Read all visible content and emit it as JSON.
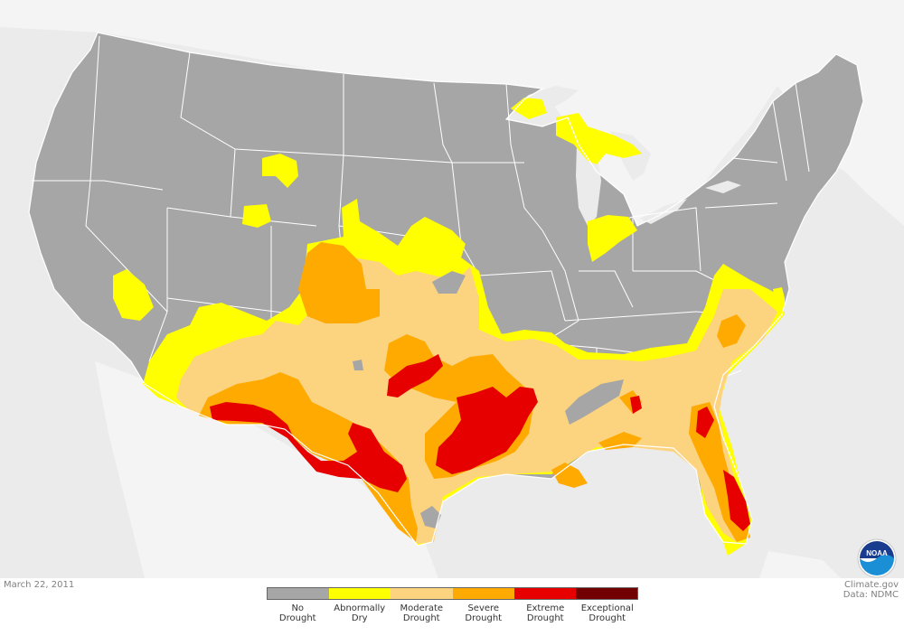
{
  "date": "March 22, 2011",
  "credits": {
    "site": "Climate.gov",
    "data": "Data: NDMC"
  },
  "logo": {
    "text": "NOAA",
    "colors": {
      "outer": "#ffffff",
      "top": "#1a3c8f",
      "bottom": "#1b8fd6"
    }
  },
  "colors": {
    "ocean": "#ebebeb",
    "neighbor_land": "#f4f4f4",
    "border": "#ffffff"
  },
  "legend": {
    "items": [
      {
        "line1": "No",
        "line2": "Drought",
        "color": "#a6a6a6"
      },
      {
        "line1": "Abnormally",
        "line2": "Dry",
        "color": "#ffff00"
      },
      {
        "line1": "Moderate",
        "line2": "Drought",
        "color": "#fcd37f"
      },
      {
        "line1": "Severe",
        "line2": "Drought",
        "color": "#ffaa00"
      },
      {
        "line1": "Extreme",
        "line2": "Drought",
        "color": "#e60000"
      },
      {
        "line1": "Exceptional",
        "line2": "Drought",
        "color": "#730000"
      }
    ]
  }
}
